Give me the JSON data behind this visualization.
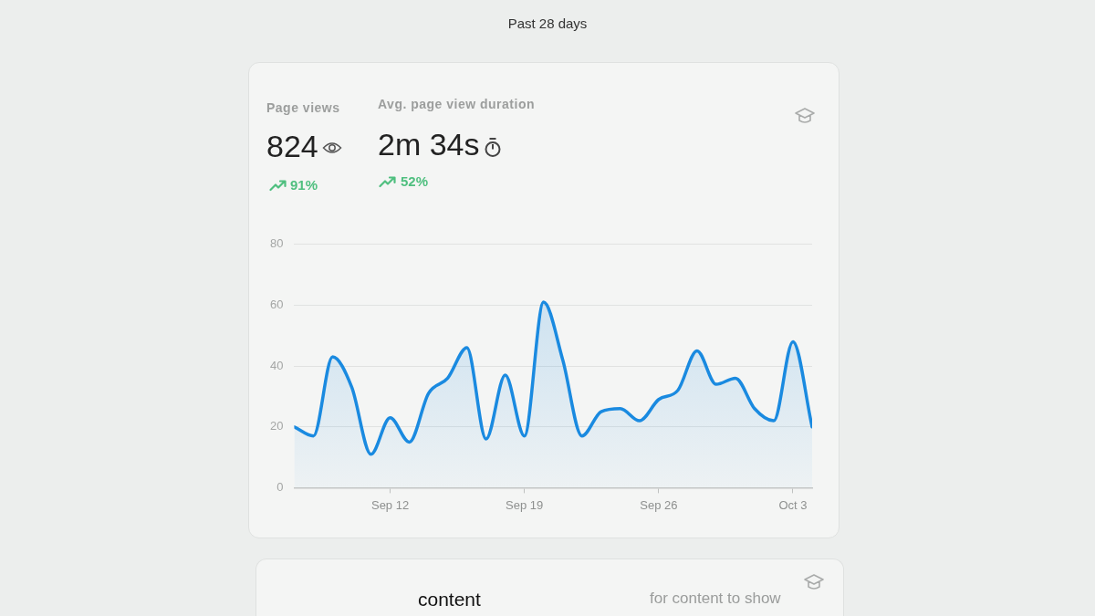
{
  "chart_data": {
    "type": "area",
    "title": "Past 28 days",
    "annotations": [
      "Page views",
      "824",
      "91%",
      "Avg. page view duration",
      "2m 34s",
      "52%",
      "content",
      "for content to show"
    ],
    "x": [
      "--09-07",
      "--09-08",
      "--09-09",
      "--09-10",
      "--09-11",
      "--09-12",
      "--09-13",
      "--09-14",
      "--09-15",
      "--09-16",
      "--09-17",
      "--09-18",
      "--09-19",
      "--09-20",
      "--09-21",
      "--09-22",
      "--09-23",
      "--09-24",
      "--09-25",
      "--09-26",
      "--09-27",
      "--09-28",
      "--09-29",
      "--09-30",
      "--10-01",
      "--10-02",
      "--10-03",
      "--10-04"
    ],
    "values": [
      20,
      17,
      43,
      33,
      11,
      23,
      15,
      31,
      36,
      46,
      16,
      37,
      17,
      61,
      42,
      17,
      25,
      26,
      22,
      29,
      32,
      45,
      34,
      36,
      26,
      22,
      48,
      20
    ],
    "color": "#1a8ae0",
    "xlim": [
      "--09-07",
      "--10-04"
    ],
    "xticks": [
      {
        "value": "--09-12",
        "label": "Sep 12"
      },
      {
        "value": "--09-19",
        "label": "Sep 19"
      },
      {
        "value": "--09-26",
        "label": "Sep 26"
      },
      {
        "value": "--10-03",
        "label": "Oct 3"
      }
    ],
    "ylim": [
      0,
      80
    ],
    "yticks": [
      0,
      20,
      40,
      60,
      80
    ],
    "grid": "y",
    "marker": "none",
    "line_style": "solid"
  }
}
